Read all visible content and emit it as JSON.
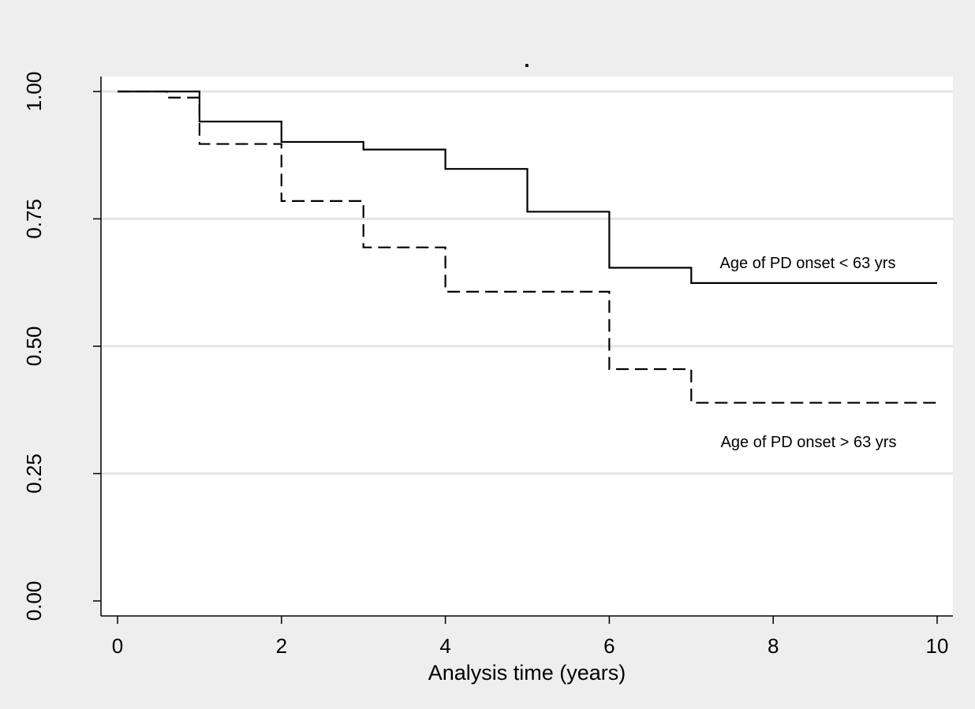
{
  "chart_data": {
    "type": "line",
    "title": ".",
    "xlabel": "Analysis time (years)",
    "ylabel": "",
    "xlim": [
      0,
      10
    ],
    "ylim": [
      0,
      1
    ],
    "x_ticks": [
      0,
      2,
      4,
      6,
      8,
      10
    ],
    "x_tick_labels": [
      "0",
      "2",
      "4",
      "6",
      "8",
      "10"
    ],
    "y_ticks": [
      0,
      0.25,
      0.5,
      0.75,
      1.0
    ],
    "y_tick_labels": [
      "0.00",
      "0.25",
      "0.50",
      "0.75",
      "1.00"
    ],
    "grid": "horizontal",
    "step": true,
    "series": [
      {
        "name": "Age of PD onset < 63 yrs",
        "style": "solid",
        "color": "#000000",
        "x": [
          0,
          1,
          2,
          3,
          4,
          5,
          6,
          7,
          10
        ],
        "y": [
          1.0,
          0.941,
          0.901,
          0.886,
          0.848,
          0.764,
          0.654,
          0.624,
          0.624
        ]
      },
      {
        "name": "Age of PD onset > 63 yrs",
        "style": "dashed",
        "color": "#000000",
        "x": [
          0,
          0.6,
          1,
          2,
          3,
          4,
          6,
          7,
          10
        ],
        "y": [
          1.0,
          0.988,
          0.897,
          0.785,
          0.694,
          0.607,
          0.455,
          0.389,
          0.389
        ]
      }
    ],
    "annotations": [
      {
        "text": "Age of PD onset < 63 yrs",
        "series": 0
      },
      {
        "text": "Age of PD onset > 63 yrs",
        "series": 1
      }
    ]
  }
}
